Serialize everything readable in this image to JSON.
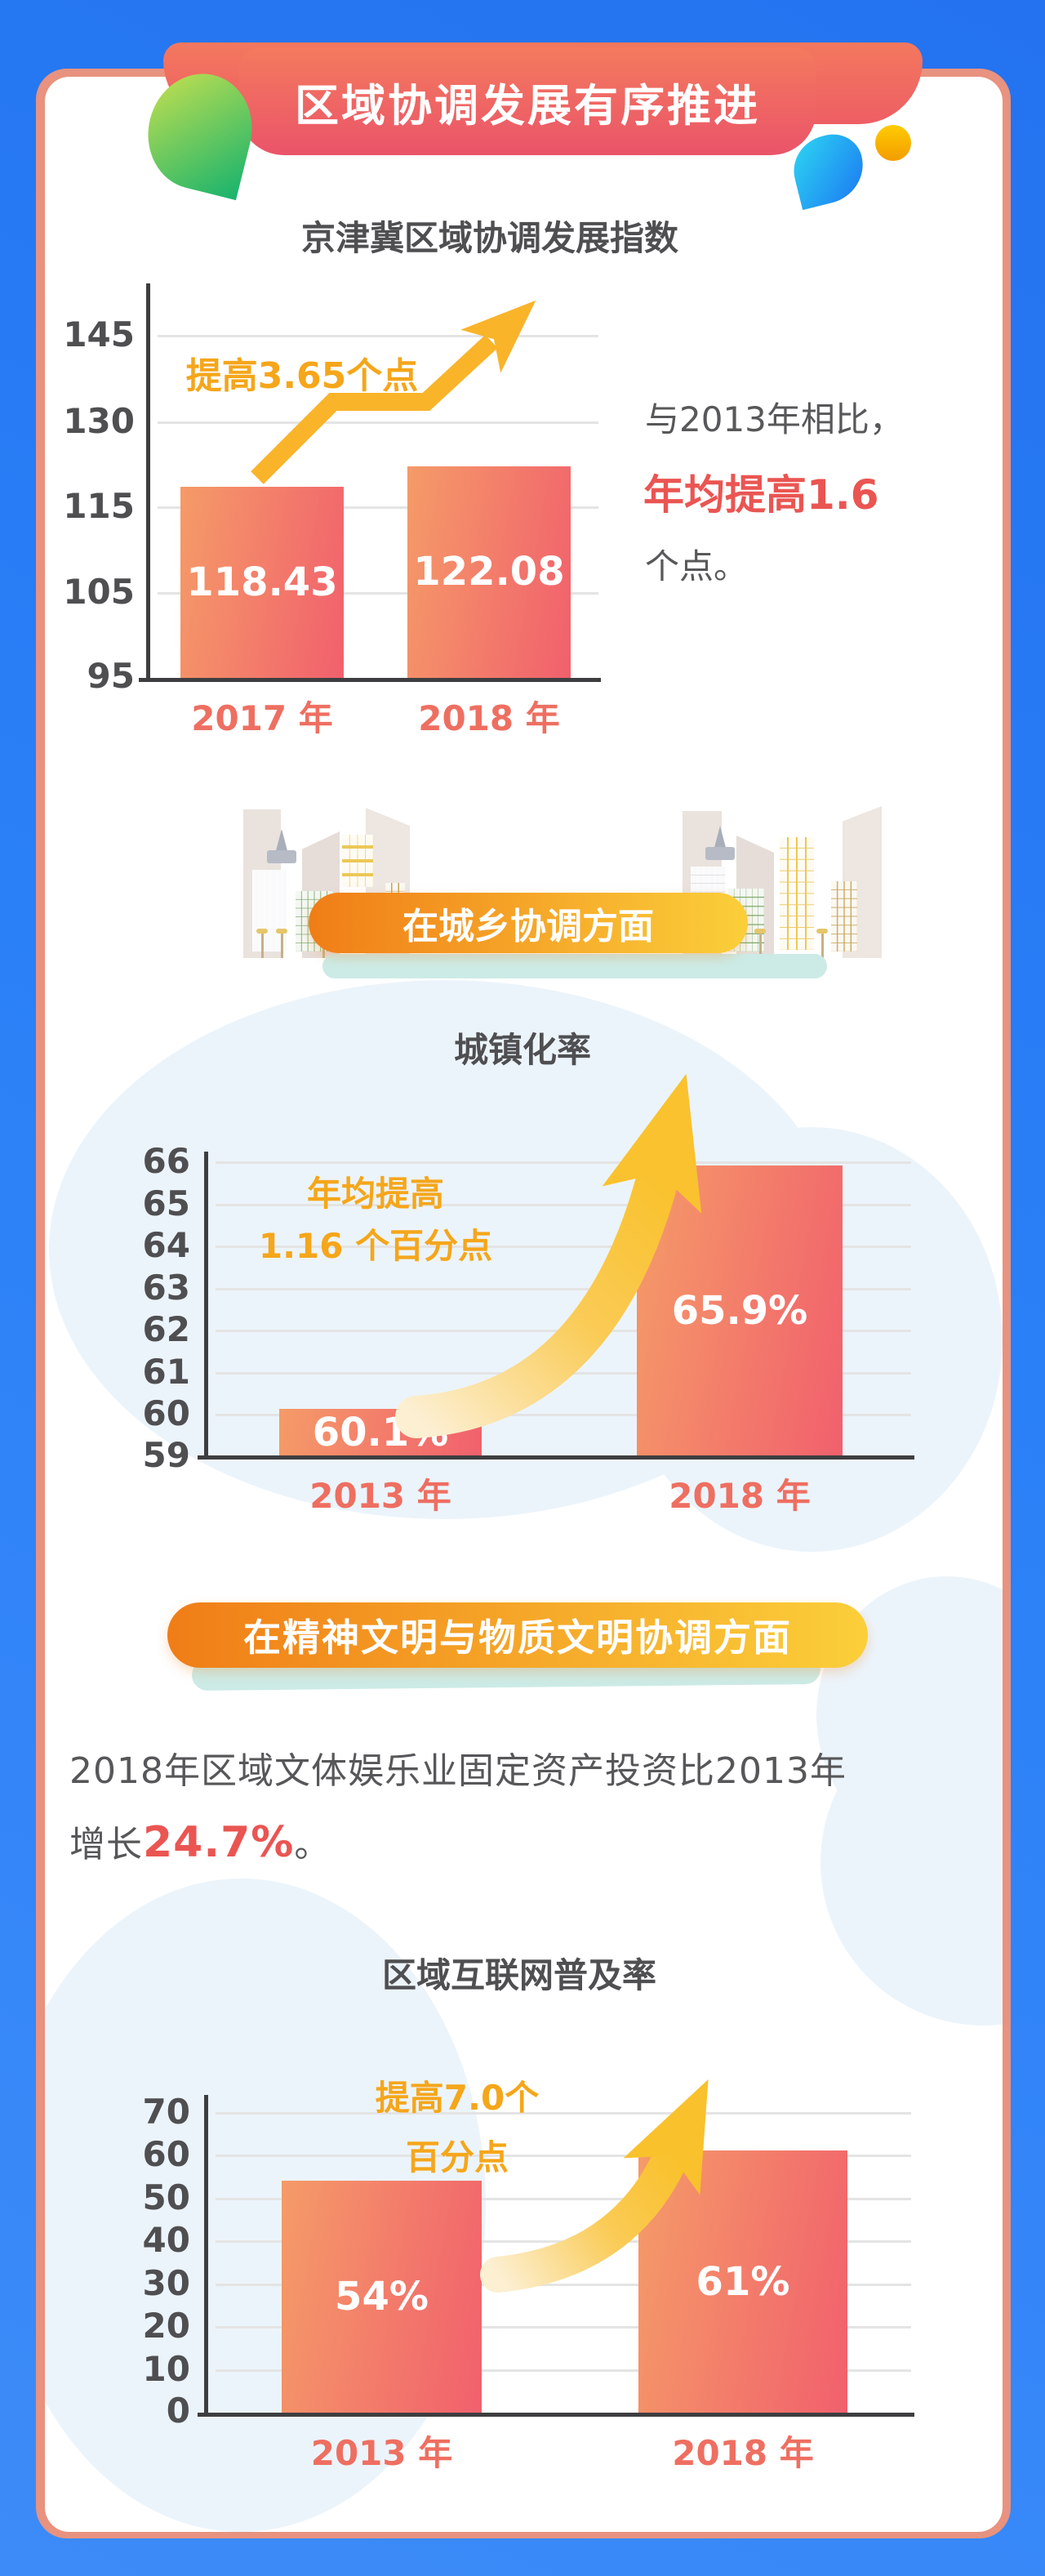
{
  "header": {
    "banner_title": "区域协调发展有序推进"
  },
  "palette": {
    "background_blue": "#2A80F7",
    "card_border_salmon": "#E8927F",
    "banner_red_top": "#F47A5E",
    "banner_red_bottom": "#EA5469",
    "bar_gradient_left": "#F59B68",
    "bar_gradient_right": "#F1606D",
    "annotation_orange": "#F5A61A",
    "arrow_yellow": "#F9C22E",
    "highlight_red": "#EA5552",
    "category_coral": "#EE6F61",
    "pill_orange_left": "#F07D17",
    "pill_yellow_right": "#FBCF3A",
    "teal_shadow": "#CCEBE6",
    "text_gray": "#57575A"
  },
  "section_index": {
    "title": "京津冀区域协调发展指数",
    "annotation": "提高3.65个点",
    "side_note": {
      "prefix": "与2013年相比，",
      "highlight": "年均提高1.6",
      "suffix": "个点。"
    }
  },
  "section_urban": {
    "banner": "在城乡协调方面",
    "title": "城镇化率",
    "annotation_line1": "年均提高",
    "annotation_line2": "1.16 个百分点"
  },
  "section_civilization": {
    "banner": "在精神文明与物质文明协调方面",
    "paragraph_line1": "2018年区域文体娱乐业固定资产投资比2013年",
    "paragraph_prefix": "增长",
    "paragraph_highlight": "24.7%",
    "paragraph_suffix": "。"
  },
  "section_internet": {
    "title": "区域互联网普及率",
    "annotation_line1": "提高7.0个",
    "annotation_line2": "百分点"
  },
  "chart_data": [
    {
      "type": "bar",
      "title": "京津冀区域协调发展指数",
      "categories": [
        "2017 年",
        "2018 年"
      ],
      "values": [
        118.43,
        122.08
      ],
      "value_labels": [
        "118.43",
        "122.08"
      ],
      "yticks": [
        95,
        105,
        115,
        130,
        145
      ],
      "ylim": [
        95,
        150
      ],
      "grid": true,
      "legend": "none",
      "annotation": "提高3.65个点"
    },
    {
      "type": "bar",
      "title": "城镇化率",
      "categories": [
        "2013 年",
        "2018 年"
      ],
      "values": [
        60.1,
        65.9
      ],
      "value_labels": [
        "60.1%",
        "65.9%"
      ],
      "yticks": [
        59,
        60,
        61,
        62,
        63,
        64,
        65,
        66
      ],
      "ylim": [
        59,
        66.5
      ],
      "grid": true,
      "legend": "none",
      "annotation": "年均提高1.16个百分点"
    },
    {
      "type": "bar",
      "title": "区域互联网普及率",
      "categories": [
        "2013 年",
        "2018 年"
      ],
      "values": [
        54,
        61
      ],
      "value_labels": [
        "54%",
        "61%"
      ],
      "yticks": [
        0,
        10,
        20,
        30,
        40,
        50,
        60,
        70
      ],
      "ylim": [
        0,
        72
      ],
      "grid": true,
      "legend": "none",
      "annotation": "提高7.0个百分点"
    }
  ]
}
